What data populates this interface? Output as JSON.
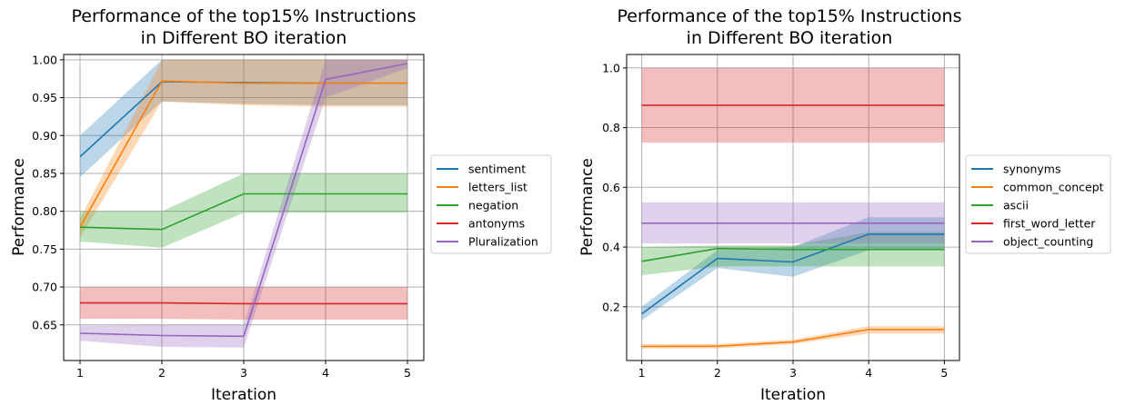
{
  "chart_data": [
    {
      "type": "line",
      "title_lines": [
        "Performance of the top15% Instructions",
        "in Different BO iteration"
      ],
      "xlabel": "Iteration",
      "ylabel": "Performance",
      "x": [
        1,
        2,
        3,
        4,
        5
      ],
      "xticks": [
        "1",
        "2",
        "3",
        "4",
        "5"
      ],
      "xlim": [
        0.8,
        5.2
      ],
      "ylim": [
        0.603,
        1.007
      ],
      "yticks": [
        0.65,
        0.7,
        0.75,
        0.8,
        0.85,
        0.9,
        0.95,
        1.0
      ],
      "ytick_labels": [
        "0.65",
        "0.70",
        "0.75",
        "0.80",
        "0.85",
        "0.90",
        "0.95",
        "1.00"
      ],
      "grid": true,
      "legend_position": "outside-right",
      "series": [
        {
          "name": "sentiment",
          "color": "#1f77b4",
          "values": [
            0.872,
            0.971,
            0.97,
            0.969,
            0.969
          ],
          "lower": [
            0.845,
            0.945,
            0.942,
            0.94,
            0.94
          ],
          "upper": [
            0.9,
            1.0,
            1.0,
            1.0,
            1.0
          ]
        },
        {
          "name": "letters_list",
          "color": "#ff7f0e",
          "values": [
            0.779,
            0.972,
            0.969,
            0.969,
            0.969
          ],
          "lower": [
            0.765,
            0.945,
            0.94,
            0.938,
            0.938
          ],
          "upper": [
            0.79,
            1.0,
            1.0,
            1.0,
            1.0
          ]
        },
        {
          "name": "negation",
          "color": "#2ca02c",
          "values": [
            0.779,
            0.776,
            0.823,
            0.823,
            0.823
          ],
          "lower": [
            0.76,
            0.752,
            0.798,
            0.798,
            0.798
          ],
          "upper": [
            0.8,
            0.8,
            0.85,
            0.85,
            0.85
          ]
        },
        {
          "name": "antonyms",
          "color": "#d62728",
          "values": [
            0.679,
            0.679,
            0.678,
            0.678,
            0.678
          ],
          "lower": [
            0.658,
            0.658,
            0.657,
            0.657,
            0.657
          ],
          "upper": [
            0.7,
            0.7,
            0.7,
            0.7,
            0.7
          ]
        },
        {
          "name": "Pluralization",
          "color": "#9467bd",
          "values": [
            0.639,
            0.636,
            0.635,
            0.974,
            0.995
          ],
          "lower": [
            0.629,
            0.621,
            0.62,
            0.95,
            0.989
          ],
          "upper": [
            0.649,
            0.65,
            0.65,
            1.0,
            1.0
          ]
        }
      ]
    },
    {
      "type": "line",
      "title_lines": [
        "Performance of the top15% Instructions",
        "in Different BO iteration"
      ],
      "xlabel": "Iteration",
      "ylabel": "Performance",
      "x": [
        1,
        2,
        3,
        4,
        5
      ],
      "xticks": [
        "1",
        "2",
        "3",
        "4",
        "5"
      ],
      "xlim": [
        0.8,
        5.2
      ],
      "ylim": [
        0.02,
        1.045
      ],
      "yticks": [
        0.2,
        0.4,
        0.6,
        0.8,
        1.0
      ],
      "ytick_labels": [
        "0.2",
        "0.4",
        "0.6",
        "0.8",
        "1.0"
      ],
      "grid": true,
      "legend_position": "outside-right",
      "series": [
        {
          "name": "synonyms",
          "color": "#1f77b4",
          "values": [
            0.176,
            0.362,
            0.35,
            0.443,
            0.443
          ],
          "lower": [
            0.155,
            0.33,
            0.3,
            0.39,
            0.39
          ],
          "upper": [
            0.2,
            0.39,
            0.4,
            0.5,
            0.5
          ]
        },
        {
          "name": "common_concept",
          "color": "#ff7f0e",
          "values": [
            0.067,
            0.068,
            0.082,
            0.124,
            0.124
          ],
          "lower": [
            0.06,
            0.06,
            0.075,
            0.11,
            0.11
          ],
          "upper": [
            0.075,
            0.075,
            0.09,
            0.135,
            0.135
          ]
        },
        {
          "name": "ascii",
          "color": "#2ca02c",
          "values": [
            0.352,
            0.395,
            0.392,
            0.392,
            0.392
          ],
          "lower": [
            0.305,
            0.335,
            0.335,
            0.335,
            0.335
          ],
          "upper": [
            0.4,
            0.405,
            0.405,
            0.45,
            0.45
          ]
        },
        {
          "name": "first_word_letter",
          "color": "#d62728",
          "values": [
            0.875,
            0.875,
            0.875,
            0.875,
            0.875
          ],
          "lower": [
            0.75,
            0.75,
            0.75,
            0.75,
            0.75
          ],
          "upper": [
            1.0,
            1.0,
            1.0,
            1.0,
            1.0
          ]
        },
        {
          "name": "object_counting",
          "color": "#9467bd",
          "values": [
            0.48,
            0.48,
            0.48,
            0.48,
            0.48
          ],
          "lower": [
            0.412,
            0.412,
            0.412,
            0.412,
            0.412
          ],
          "upper": [
            0.55,
            0.55,
            0.55,
            0.55,
            0.55
          ]
        }
      ]
    }
  ]
}
